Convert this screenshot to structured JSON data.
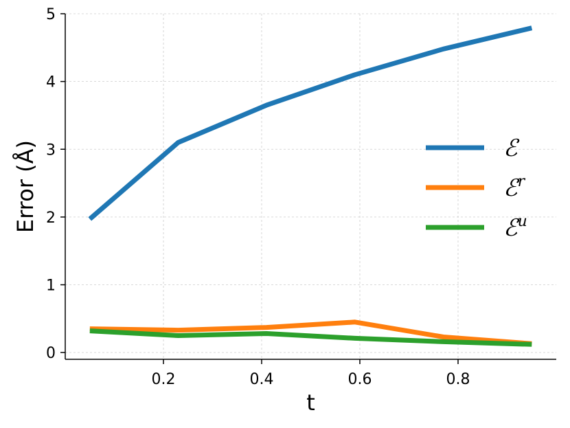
{
  "chart_data": {
    "type": "line",
    "xlabel": "t",
    "ylabel": "Error (Å)",
    "xlim": [
      0.0,
      1.0
    ],
    "ylim": [
      -0.1,
      5.0
    ],
    "xticks": [
      0.2,
      0.4,
      0.6,
      0.8
    ],
    "xtick_labels": [
      "0.2",
      "0.4",
      "0.6",
      "0.8"
    ],
    "yticks": [
      0,
      1,
      2,
      3,
      4,
      5
    ],
    "ytick_labels": [
      "0",
      "1",
      "2",
      "3",
      "4",
      "5"
    ],
    "grid": true,
    "legend_position": "right",
    "x": [
      0.05,
      0.23,
      0.41,
      0.59,
      0.77,
      0.95
    ],
    "series": [
      {
        "name": "ℰ",
        "name_sup": "",
        "color": "#1f77b4",
        "values": [
          1.97,
          3.1,
          3.65,
          4.1,
          4.48,
          4.79
        ]
      },
      {
        "name": "ℰ",
        "name_sup": "r",
        "color": "#ff7f0e",
        "values": [
          0.35,
          0.33,
          0.37,
          0.45,
          0.23,
          0.13
        ]
      },
      {
        "name": "ℰ",
        "name_sup": "u",
        "color": "#2ca02c",
        "values": [
          0.32,
          0.25,
          0.28,
          0.21,
          0.16,
          0.12
        ]
      }
    ]
  }
}
